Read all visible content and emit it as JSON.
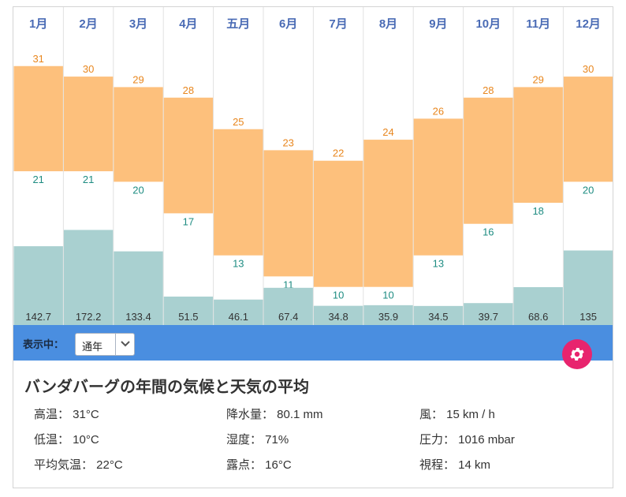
{
  "chart_data": {
    "type": "bar",
    "categories": [
      "1月",
      "2月",
      "3月",
      "4月",
      "五月",
      "6月",
      "7月",
      "8月",
      "9月",
      "10月",
      "11月",
      "12月"
    ],
    "series": [
      {
        "values": [
          31,
          30,
          29,
          28,
          25,
          23,
          22,
          24,
          26,
          28,
          29,
          30
        ]
      },
      {
        "values": [
          21,
          21,
          20,
          17,
          13,
          11,
          10,
          10,
          13,
          16,
          18,
          20
        ]
      },
      {
        "values": [
          142.7,
          172.2,
          133.4,
          51.5,
          46.1,
          67.4,
          34.8,
          35.9,
          34.5,
          39.7,
          68.6,
          135
        ]
      }
    ],
    "rain_labels": [
      "142.7",
      "172.2",
      "133.4",
      "51.5",
      "46.1",
      "67.4",
      "34.8",
      "35.9",
      "34.5",
      "39.7",
      "68.6",
      "135"
    ],
    "colors": {
      "temp_band": "#fdc07c",
      "rain_bar": "#a9d0d0",
      "high_text": "#e8861d",
      "low_text": "#1e8c82",
      "month_text": "#4a6bb5"
    }
  },
  "toolbar": {
    "label": "表示中：",
    "period": "通年"
  },
  "summary": {
    "title": "バンダバーグの年間の気候と天気の平均",
    "high": "高温： 31°C",
    "low": "低温： 10°C",
    "avg": "平均気温： 22°C",
    "precip": "降水量： 80.1 mm",
    "humidity": "湿度： 71%",
    "dew": "露点： 16°C",
    "wind": "風： 15 km / h",
    "pressure": "圧力： 1016 mbar",
    "visibility": "視程： 14 km"
  }
}
